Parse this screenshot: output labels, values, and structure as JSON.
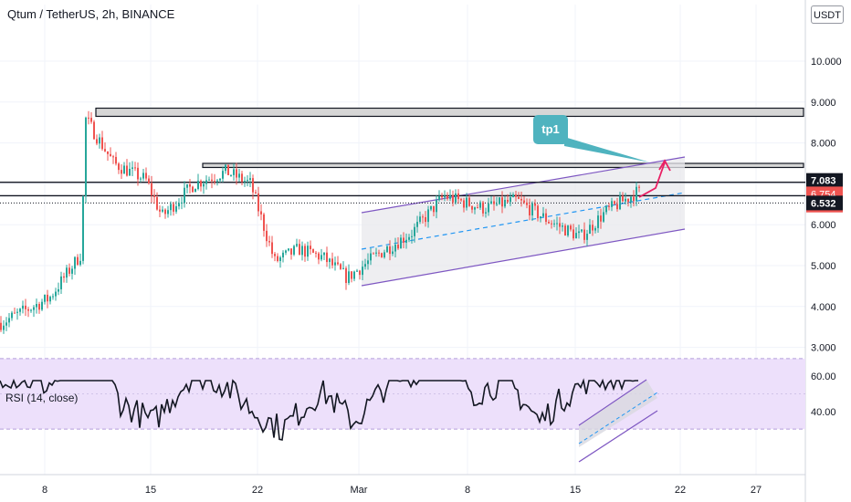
{
  "header": {
    "title": "Qtum / TetherUS, 2h, BINANCE",
    "currency_button": "USDT"
  },
  "annotation": {
    "label": "tp1"
  },
  "rsi": {
    "label": "RSI (14, close)",
    "level_high": 70,
    "level_low": 30
  },
  "colors": {
    "up": "#26a69a",
    "down": "#ef5350",
    "channel": "#7e57c2",
    "callout": "#4fb3bf",
    "arrow": "#e91e63",
    "price_tag_red": "#ef5350",
    "price_tag_black": "#131722",
    "rsi_band": "#ede0fb"
  },
  "chart_data": [
    {
      "type": "candlestick",
      "title": "Qtum / TetherUS, 2h, BINANCE",
      "y_axis_labels": [
        "10.000",
        "9.000",
        "8.000",
        "7.000",
        "6.000",
        "5.000",
        "4.000",
        "3.000"
      ],
      "y_axis_values": [
        10,
        9,
        8,
        7,
        6,
        5,
        4,
        3
      ],
      "x_axis_labels": [
        "8",
        "15",
        "22",
        "Mar",
        "8",
        "15",
        "22",
        "27"
      ],
      "price_tags": [
        {
          "label": "7.083",
          "value": 7.083,
          "style": "black"
        },
        {
          "label": "6.754",
          "value": 6.754,
          "style": "red"
        },
        {
          "label": "37:33",
          "value": 6.48,
          "style": "red"
        },
        {
          "label": "6.532",
          "value": 6.532,
          "style": "black"
        }
      ],
      "resistance_zones": [
        {
          "low": 8.65,
          "high": 8.85
        },
        {
          "low": 7.4,
          "high": 7.5
        }
      ],
      "horizontal_lines": [
        7.083,
        6.754
      ],
      "price_path": [
        {
          "t": 0,
          "p": 3.6
        },
        {
          "t": 0.06,
          "p": 4.2
        },
        {
          "t": 0.1,
          "p": 5.3
        },
        {
          "t": 0.105,
          "p": 8.6
        },
        {
          "t": 0.14,
          "p": 7.5
        },
        {
          "t": 0.18,
          "p": 7.1
        },
        {
          "t": 0.2,
          "p": 6.2
        },
        {
          "t": 0.24,
          "p": 7.0
        },
        {
          "t": 0.28,
          "p": 7.3
        },
        {
          "t": 0.31,
          "p": 7.0
        },
        {
          "t": 0.34,
          "p": 5.1
        },
        {
          "t": 0.37,
          "p": 5.4
        },
        {
          "t": 0.4,
          "p": 5.2
        },
        {
          "t": 0.43,
          "p": 4.7
        },
        {
          "t": 0.47,
          "p": 5.3
        },
        {
          "t": 0.51,
          "p": 5.8
        },
        {
          "t": 0.55,
          "p": 6.7
        },
        {
          "t": 0.6,
          "p": 6.4
        },
        {
          "t": 0.64,
          "p": 6.6
        },
        {
          "t": 0.68,
          "p": 6.1
        },
        {
          "t": 0.72,
          "p": 5.7
        },
        {
          "t": 0.75,
          "p": 6.3
        },
        {
          "t": 0.79,
          "p": 6.8
        }
      ],
      "rsi_path": [
        {
          "t": 0,
          "p": 62
        },
        {
          "t": 0.06,
          "p": 55
        },
        {
          "t": 0.1,
          "p": 68
        },
        {
          "t": 0.12,
          "p": 75
        },
        {
          "t": 0.15,
          "p": 45
        },
        {
          "t": 0.19,
          "p": 34
        },
        {
          "t": 0.24,
          "p": 62
        },
        {
          "t": 0.28,
          "p": 55
        },
        {
          "t": 0.32,
          "p": 38
        },
        {
          "t": 0.35,
          "p": 30
        },
        {
          "t": 0.4,
          "p": 52
        },
        {
          "t": 0.44,
          "p": 34
        },
        {
          "t": 0.48,
          "p": 55
        },
        {
          "t": 0.52,
          "p": 64
        },
        {
          "t": 0.55,
          "p": 74
        },
        {
          "t": 0.59,
          "p": 50
        },
        {
          "t": 0.63,
          "p": 58
        },
        {
          "t": 0.67,
          "p": 34
        },
        {
          "t": 0.7,
          "p": 48
        },
        {
          "t": 0.73,
          "p": 58
        },
        {
          "t": 0.77,
          "p": 60
        },
        {
          "t": 0.79,
          "p": 66
        }
      ],
      "rsi_y_axis_labels": [
        "60.00",
        "40.00"
      ],
      "rsi_y_axis_values": [
        60,
        40
      ]
    }
  ]
}
